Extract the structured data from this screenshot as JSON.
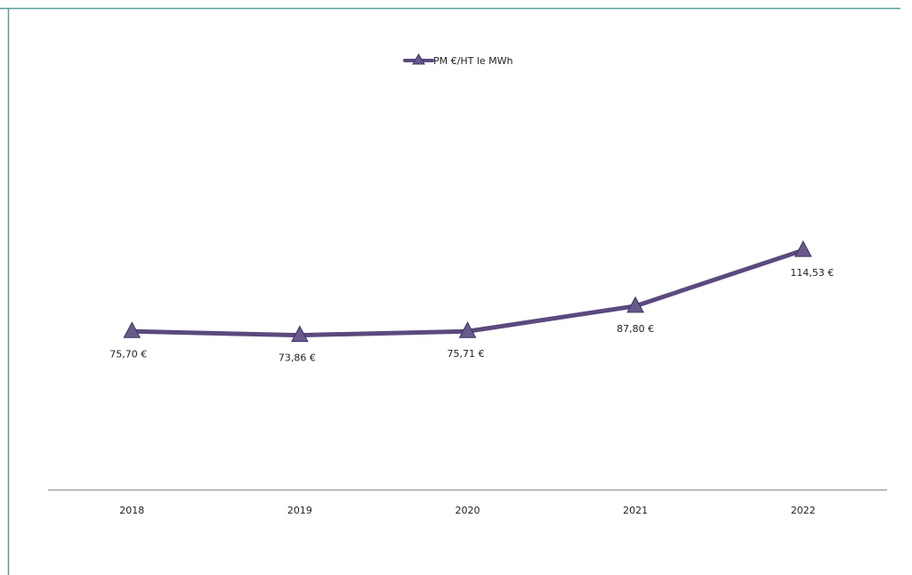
{
  "chart_data": {
    "type": "line",
    "categories": [
      "2018",
      "2019",
      "2020",
      "2021",
      "2022"
    ],
    "series": [
      {
        "name": "PM €/HT le MWh",
        "values": [
          75.7,
          73.86,
          75.71,
          87.8,
          114.53
        ],
        "labels": [
          "75,70 €",
          "73,86 €",
          "75,71 €",
          "87,80 €",
          "114,53 €"
        ]
      }
    ],
    "legend_position": "top-center",
    "marker": "triangle",
    "grid": false,
    "ylim": [
      0,
      230
    ]
  },
  "colors": {
    "line": "#5b4a7e",
    "marker_fill": "#6a5a8c",
    "marker_stroke": "#3e3260",
    "frame": "#5a9b98",
    "axis": "#8c8c8c",
    "text": "#222222"
  }
}
